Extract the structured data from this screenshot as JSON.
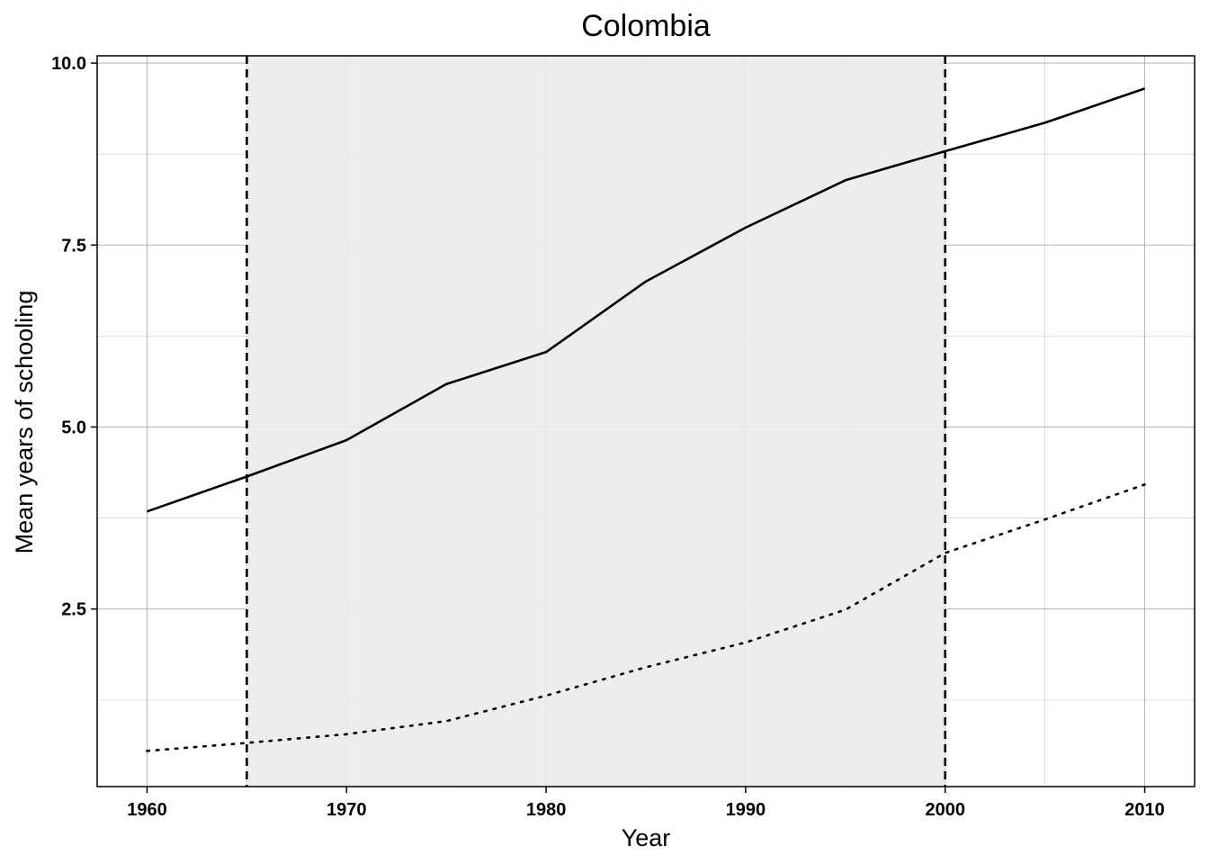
{
  "chart_data": {
    "type": "line",
    "title": "Colombia",
    "xlabel": "Year",
    "ylabel": "Mean years of schooling",
    "xlim": [
      1957.5,
      2012.5
    ],
    "ylim": [
      0.06,
      10.1
    ],
    "x_ticks": [
      1960,
      1970,
      1980,
      1990,
      2000,
      2010
    ],
    "x_tick_labels": [
      "1960",
      "1970",
      "1980",
      "1990",
      "2000",
      "2010"
    ],
    "y_ticks": [
      2.5,
      5.0,
      7.5,
      10.0
    ],
    "y_tick_labels": [
      "2.5",
      "5.0",
      "7.5",
      "10.0"
    ],
    "grid": true,
    "shaded_region": {
      "x_start": 1965,
      "x_end": 2000,
      "color": "#ebebeb"
    },
    "vertical_lines": [
      {
        "x": 1965,
        "style": "dashed"
      },
      {
        "x": 2000,
        "style": "dashed"
      }
    ],
    "x": [
      1960,
      1965,
      1970,
      1975,
      1980,
      1985,
      1990,
      1995,
      2000,
      2005,
      2010
    ],
    "series": [
      {
        "style": "solid",
        "values": [
          3.84,
          4.32,
          4.82,
          5.59,
          6.03,
          7.0,
          7.74,
          8.39,
          8.79,
          9.18,
          9.65
        ]
      },
      {
        "style": "dotted",
        "values": [
          0.55,
          0.66,
          0.78,
          0.96,
          1.31,
          1.7,
          2.04,
          2.49,
          3.27,
          3.73,
          4.21
        ]
      }
    ]
  }
}
